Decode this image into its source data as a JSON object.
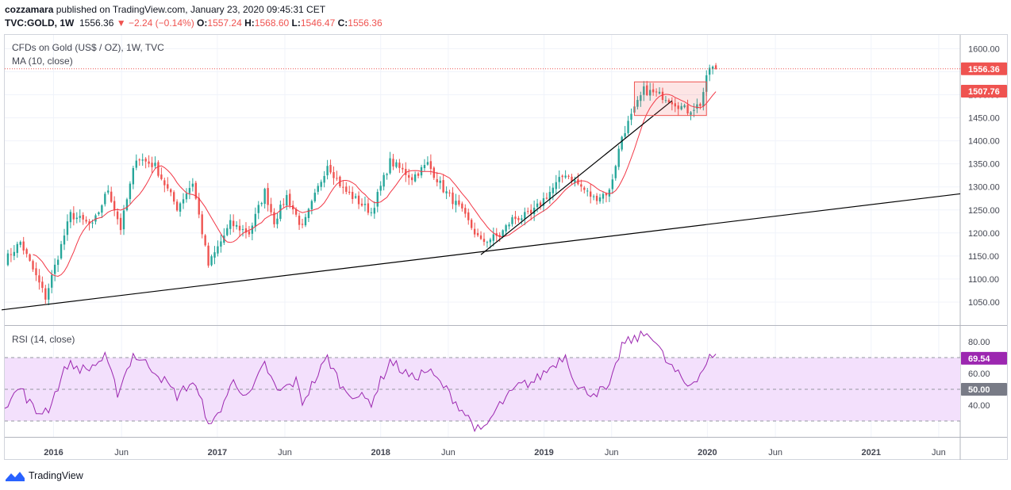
{
  "header": {
    "author": "cozzamara",
    "published_text": "published on TradingView.com, January 23, 2020 09:45:31 CET",
    "symbol": "TVC:GOLD, 1W",
    "last": "1556.36",
    "change": "−2.24 (−0.14%)",
    "o_label": "O:",
    "o": "1557.24",
    "h_label": "H:",
    "h": "1568.60",
    "l_label": "L:",
    "l": "1546.47",
    "c_label": "C:",
    "c": "1556.36"
  },
  "main_pane": {
    "title": "CFDs on Gold (US$ / OZ), 1W, TVC",
    "indicator": "MA (10, close)",
    "price_badge": "1556.36",
    "ma_badge": "1507.76",
    "price_badge_color": "#ef5350",
    "ma_badge_color": "#ef5350"
  },
  "rsi_pane": {
    "title": "RSI (14, close)",
    "value_badge": "69.54",
    "mid_badge": "50.00",
    "line_color": "#9c27b0"
  },
  "footer": {
    "brand": "TradingView"
  },
  "colors": {
    "up": "#26a69a",
    "down": "#ef5350",
    "ma": "#f23645",
    "rsi": "#9c27b0",
    "rsi_band": "#f3e0fc"
  },
  "chart_data": [
    {
      "type": "candlestick",
      "title": "CFDs on Gold (US$ / OZ), 1W, TVC",
      "ylim": [
        1000,
        1630
      ],
      "y_ticks": [
        "1600.00",
        "1550.00",
        "1500.00",
        "1450.00",
        "1400.00",
        "1350.00",
        "1300.00",
        "1250.00",
        "1200.00",
        "1150.00",
        "1100.00",
        "1050.00"
      ],
      "x_ticks": [
        "2016",
        "Jun",
        "2017",
        "Jun",
        "2018",
        "Jun",
        "2019",
        "Jun",
        "2020",
        "Jun",
        "2021",
        "Jun"
      ],
      "x_tick_dates": [
        "2016-01-01",
        "2016-06-01",
        "2017-01-01",
        "2017-06-01",
        "2018-01-01",
        "2018-06-01",
        "2019-01-01",
        "2019-06-01",
        "2020-01-01",
        "2020-06-01",
        "2021-01-01",
        "2021-06-01"
      ],
      "xlim": [
        "2015-09-14",
        "2021-07-19"
      ],
      "close_keypoints": [
        [
          "2015-09-14",
          1140
        ],
        [
          "2015-10-19",
          1180
        ],
        [
          "2015-12-14",
          1060
        ],
        [
          "2016-02-08",
          1240
        ],
        [
          "2016-03-28",
          1215
        ],
        [
          "2016-05-02",
          1295
        ],
        [
          "2016-05-30",
          1210
        ],
        [
          "2016-07-04",
          1365
        ],
        [
          "2016-08-15",
          1345
        ],
        [
          "2016-10-03",
          1255
        ],
        [
          "2016-11-07",
          1310
        ],
        [
          "2016-12-12",
          1130
        ],
        [
          "2017-01-30",
          1220
        ],
        [
          "2017-03-13",
          1200
        ],
        [
          "2017-04-17",
          1290
        ],
        [
          "2017-05-08",
          1225
        ],
        [
          "2017-06-05",
          1280
        ],
        [
          "2017-07-10",
          1210
        ],
        [
          "2017-09-04",
          1350
        ],
        [
          "2017-10-09",
          1295
        ],
        [
          "2017-12-11",
          1245
        ],
        [
          "2018-01-22",
          1355
        ],
        [
          "2018-03-12",
          1320
        ],
        [
          "2018-04-16",
          1350
        ],
        [
          "2018-05-21",
          1295
        ],
        [
          "2018-06-25",
          1255
        ],
        [
          "2018-08-13",
          1180
        ],
        [
          "2018-09-24",
          1195
        ],
        [
          "2018-10-22",
          1230
        ],
        [
          "2018-12-03",
          1240
        ],
        [
          "2019-02-18",
          1330
        ],
        [
          "2019-04-22",
          1275
        ],
        [
          "2019-05-27",
          1290
        ],
        [
          "2019-06-24",
          1410
        ],
        [
          "2019-08-12",
          1510
        ],
        [
          "2019-09-30",
          1495
        ],
        [
          "2019-11-18",
          1465
        ],
        [
          "2019-12-16",
          1480
        ],
        [
          "2020-01-06",
          1560
        ],
        [
          "2020-01-20",
          1556
        ]
      ],
      "ma_period": 10,
      "ma_last": 1507.76,
      "last_close": 1556.36,
      "trendlines": [
        {
          "from": [
            "2015-09-07",
            1033
          ],
          "to": [
            "2021-07-19",
            1285
          ]
        },
        {
          "from": [
            "2018-08-13",
            1153
          ],
          "to": [
            "2019-10-14",
            1487
          ]
        }
      ],
      "box": {
        "from": [
          "2019-07-22",
          1528
        ],
        "to": [
          "2019-12-30",
          1455
        ]
      }
    },
    {
      "type": "line",
      "title": "RSI (14, close)",
      "ylim": [
        20,
        90
      ],
      "y_ticks": [
        "80.00",
        "60.00",
        "40.00"
      ],
      "bands": [
        70,
        50,
        30
      ],
      "last": 69.54,
      "keypoints": [
        [
          "2015-09-14",
          40
        ],
        [
          "2015-10-19",
          51
        ],
        [
          "2015-11-23",
          35
        ],
        [
          "2015-12-21",
          38
        ],
        [
          "2016-02-01",
          66
        ],
        [
          "2016-03-14",
          62
        ],
        [
          "2016-04-25",
          70
        ],
        [
          "2016-05-23",
          48
        ],
        [
          "2016-06-27",
          72
        ],
        [
          "2016-08-15",
          62
        ],
        [
          "2016-10-03",
          46
        ],
        [
          "2016-11-07",
          55
        ],
        [
          "2016-12-19",
          26
        ],
        [
          "2017-02-06",
          55
        ],
        [
          "2017-03-13",
          45
        ],
        [
          "2017-04-17",
          66
        ],
        [
          "2017-05-15",
          48
        ],
        [
          "2017-06-26",
          55
        ],
        [
          "2017-07-10",
          42
        ],
        [
          "2017-09-04",
          70
        ],
        [
          "2017-10-09",
          50
        ],
        [
          "2017-12-11",
          42
        ],
        [
          "2018-01-22",
          68
        ],
        [
          "2018-03-12",
          57
        ],
        [
          "2018-04-16",
          62
        ],
        [
          "2018-05-21",
          52
        ],
        [
          "2018-08-13",
          22
        ],
        [
          "2018-09-24",
          40
        ],
        [
          "2018-11-05",
          52
        ],
        [
          "2018-12-10",
          55
        ],
        [
          "2019-02-18",
          72
        ],
        [
          "2019-03-18",
          50
        ],
        [
          "2019-04-22",
          48
        ],
        [
          "2019-05-27",
          50
        ],
        [
          "2019-06-24",
          78
        ],
        [
          "2019-08-26",
          86
        ],
        [
          "2019-09-30",
          68
        ],
        [
          "2019-11-18",
          52
        ],
        [
          "2019-12-16",
          60
        ],
        [
          "2020-01-06",
          70
        ],
        [
          "2020-01-20",
          69.54
        ]
      ]
    }
  ]
}
